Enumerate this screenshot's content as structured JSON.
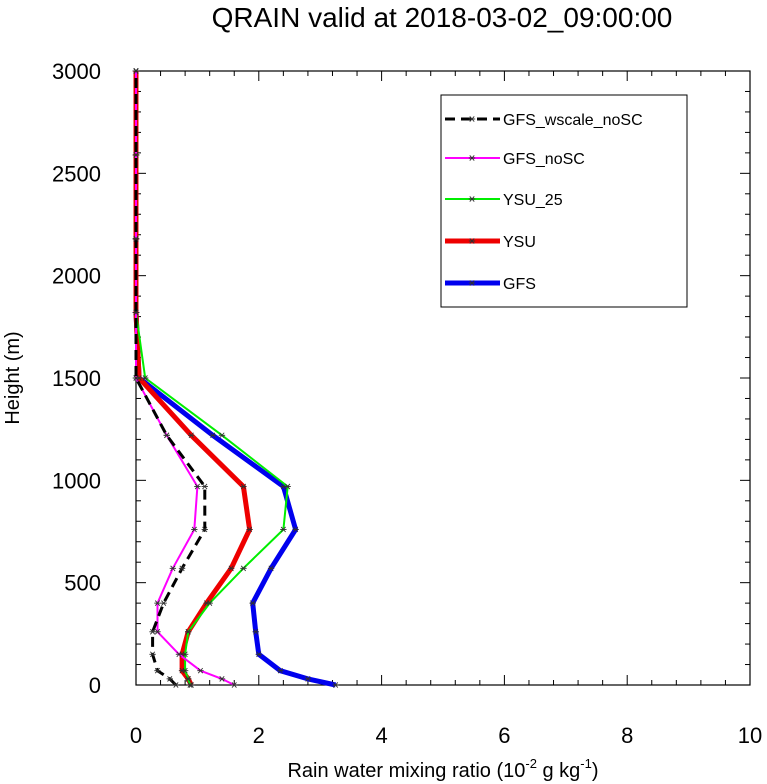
{
  "chart_data": {
    "type": "line",
    "title": "QRAIN valid at 2018-03-02_09:00:00",
    "xlabel": "Rain water mixing ratio (10",
    "xlabel_sup1": "-2",
    "xlabel_mid": " g kg",
    "xlabel_sup2": "-1",
    "xlabel_end": ")",
    "ylabel": "Height (m)",
    "xlim": [
      0,
      10
    ],
    "ylim": [
      0,
      3000
    ],
    "xticks": [
      0,
      2,
      4,
      6,
      8,
      10
    ],
    "yticks": [
      0,
      500,
      1000,
      1500,
      2000,
      2500,
      3000
    ],
    "grid": false,
    "legend_position": "top-right",
    "heights": [
      0,
      30,
      70,
      150,
      260,
      400,
      570,
      760,
      970,
      1220,
      1500,
      1820,
      2180,
      2590,
      3000
    ],
    "series": [
      {
        "name": "GFS_wscale_noSC",
        "color": "#000000",
        "width": 3,
        "dash": "10,6",
        "values": [
          0.65,
          0.55,
          0.35,
          0.27,
          0.27,
          0.45,
          0.75,
          1.12,
          1.12,
          0.5,
          0.0,
          0.0,
          0.0,
          0.0,
          0.0
        ]
      },
      {
        "name": "GFS_noSC",
        "color": "#ff00ff",
        "width": 2,
        "dash": "",
        "values": [
          1.6,
          1.4,
          1.05,
          0.7,
          0.35,
          0.35,
          0.6,
          0.95,
          1.0,
          0.5,
          0.0,
          0.0,
          0.0,
          0.0,
          0.0
        ]
      },
      {
        "name": "YSU_25",
        "color": "#00ee00",
        "width": 2,
        "dash": "",
        "values": [
          0.88,
          0.85,
          0.8,
          0.8,
          0.85,
          1.2,
          1.75,
          2.4,
          2.47,
          1.4,
          0.15,
          0.0,
          0.0,
          0.0,
          0.0
        ]
      },
      {
        "name": "YSU",
        "color": "#ee0000",
        "width": 5,
        "dash": "",
        "values": [
          0.9,
          0.85,
          0.75,
          0.75,
          0.85,
          1.15,
          1.55,
          1.85,
          1.75,
          0.9,
          0.05,
          0.0,
          0.0,
          0.0,
          0.0
        ]
      },
      {
        "name": "GFS",
        "color": "#0000ee",
        "width": 5,
        "dash": "",
        "values": [
          3.25,
          2.8,
          2.35,
          2.0,
          1.95,
          1.9,
          2.2,
          2.6,
          2.4,
          1.25,
          0.05,
          0.0,
          0.0,
          0.0,
          0.0
        ]
      }
    ]
  }
}
